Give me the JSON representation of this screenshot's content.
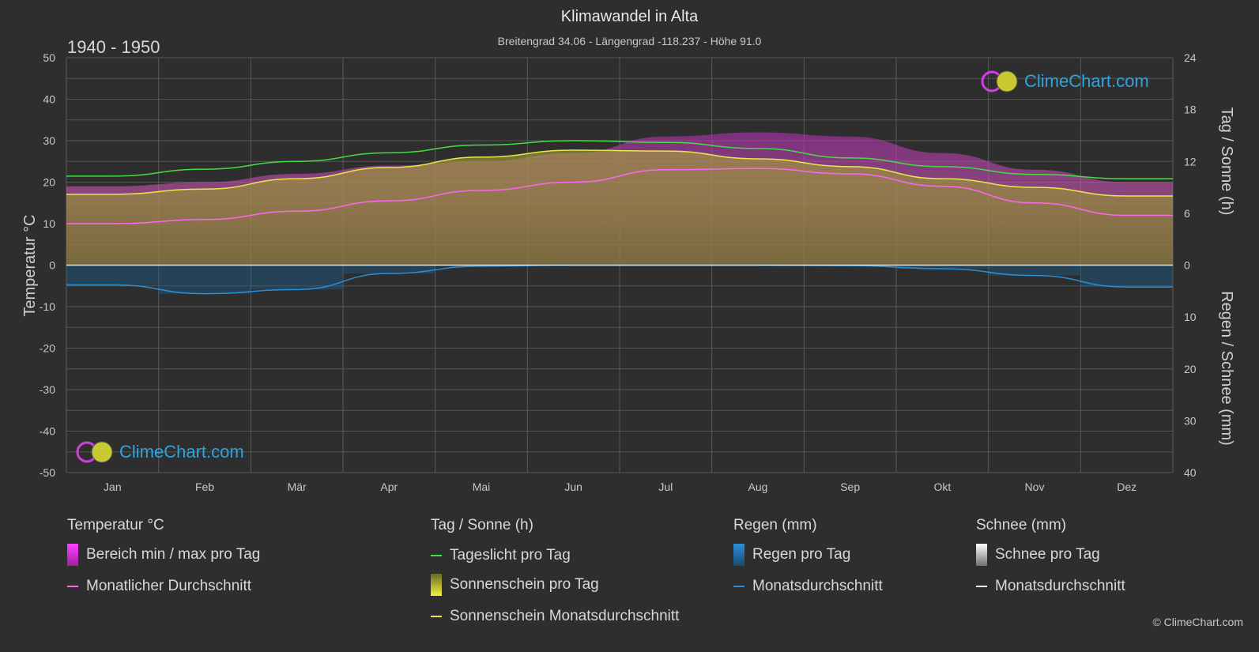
{
  "header": {
    "title": "Klimawandel in Alta",
    "subtitle": "Breitengrad 34.06 - Längengrad -118.237 - Höhe 91.0",
    "period": "1940 - 1950"
  },
  "axes": {
    "left_title": "Temperatur °C",
    "right_top_title": "Tag / Sonne (h)",
    "right_bottom_title": "Regen / Schnee (mm)",
    "left_ticks": [
      "50",
      "40",
      "30",
      "20",
      "10",
      "0",
      "-10",
      "-20",
      "-30",
      "-40",
      "-50"
    ],
    "right_top_ticks": [
      "24",
      "18",
      "12",
      "6",
      "0"
    ],
    "right_bottom_ticks": [
      "10",
      "20",
      "30",
      "40"
    ]
  },
  "brand": {
    "text": "ClimeChart.com"
  },
  "copyright": "© ClimeChart.com",
  "legend": {
    "temp_head": "Temperatur °C",
    "temp_range": "Bereich min / max pro Tag",
    "temp_avg": "Monatlicher Durchschnitt",
    "sun_head": "Tag / Sonne (h)",
    "daylight": "Tageslicht pro Tag",
    "sunshine": "Sonnenschein pro Tag",
    "sunshine_avg": "Sonnenschein Monatsdurchschnitt",
    "rain_head": "Regen (mm)",
    "rain_day": "Regen pro Tag",
    "rain_avg": "Monatsdurchschnitt",
    "snow_head": "Schnee (mm)",
    "snow_day": "Schnee pro Tag",
    "snow_avg": "Monatsdurchschnitt"
  },
  "colors": {
    "daylight": "#44dd44",
    "sunshine_line": "#e8e84a",
    "sunshine_fill": "#9a9a30",
    "temp_avg": "#ff66ee",
    "temp_range": "#d040c0",
    "rain": "#2a8fd8",
    "snow": "#ffffff"
  },
  "chart_data": {
    "type": "line",
    "categories": [
      "Jan",
      "Feb",
      "Mär",
      "Apr",
      "Mai",
      "Jun",
      "Jul",
      "Aug",
      "Sep",
      "Okt",
      "Nov",
      "Dez"
    ],
    "temp_ylim": [
      -50,
      50
    ],
    "sun_ylim": [
      0,
      24
    ],
    "rain_ylim": [
      0,
      40
    ],
    "series": [
      {
        "name": "Tageslicht pro Tag",
        "axis": "sun",
        "values": [
          10.3,
          11.1,
          12.0,
          13.0,
          13.9,
          14.4,
          14.2,
          13.5,
          12.4,
          11.4,
          10.5,
          10.0
        ]
      },
      {
        "name": "Sonnenschein Monatsdurchschnitt",
        "axis": "sun",
        "values": [
          8.2,
          8.8,
          10.0,
          11.3,
          12.5,
          13.3,
          13.2,
          12.3,
          11.4,
          10.0,
          9.0,
          8.0
        ]
      },
      {
        "name": "Monatlicher Durchschnitt",
        "axis": "temp",
        "values": [
          10.0,
          11.0,
          13.0,
          15.5,
          18.0,
          20.0,
          23.0,
          23.3,
          22.0,
          19.0,
          15.0,
          12.0
        ]
      },
      {
        "name": "Monatsdurchschnitt (Regen)",
        "axis": "rain",
        "values": [
          3.8,
          5.5,
          4.7,
          1.6,
          0.2,
          0.0,
          0.0,
          0.0,
          0.1,
          0.7,
          2.0,
          4.2
        ]
      },
      {
        "name": "Monatsdurchschnitt (Schnee)",
        "axis": "rain",
        "values": [
          0,
          0,
          0,
          0,
          0,
          0,
          0,
          0,
          0,
          0,
          0,
          0
        ]
      }
    ],
    "temp_range_max": [
      19,
      20,
      22,
      24,
      25,
      27,
      31,
      32,
      31,
      27,
      23,
      20
    ],
    "temp_range_min": [
      0,
      0,
      0,
      0,
      0,
      0,
      0,
      0,
      0,
      0,
      0,
      0
    ]
  }
}
